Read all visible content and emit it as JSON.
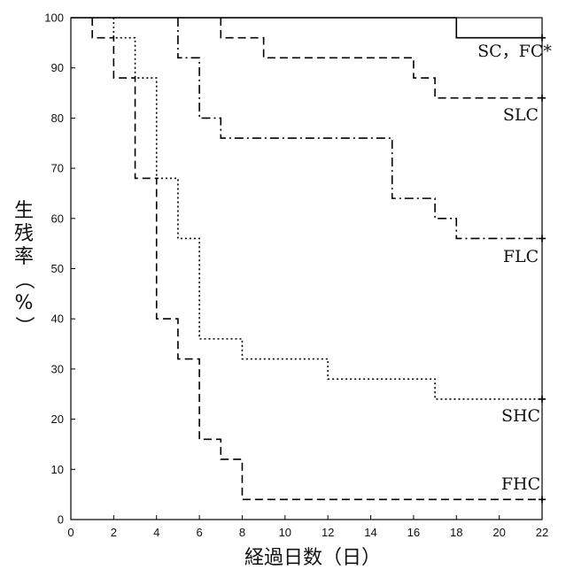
{
  "chart_data": {
    "type": "line",
    "subtype": "step",
    "xlabel": "経過日数（日）",
    "ylabel": "生残率（%）",
    "xlim": [
      0,
      22
    ],
    "ylim": [
      0,
      100
    ],
    "x_ticks": [
      0,
      2,
      4,
      6,
      8,
      10,
      12,
      14,
      16,
      18,
      20,
      22
    ],
    "y_ticks": [
      0,
      10,
      20,
      30,
      40,
      50,
      60,
      70,
      80,
      90,
      100
    ],
    "grid": false,
    "legend": "inline labels at right end of each curve",
    "series": [
      {
        "name": "SC，FC*",
        "style": "solid",
        "points": [
          [
            0,
            100
          ],
          [
            18,
            100
          ],
          [
            18,
            96
          ],
          [
            22,
            96
          ]
        ],
        "end_marker": "+"
      },
      {
        "name": "SLC",
        "style": "dashed",
        "points": [
          [
            7,
            100
          ],
          [
            7,
            96
          ],
          [
            9,
            96
          ],
          [
            9,
            92
          ],
          [
            16,
            92
          ],
          [
            16,
            88
          ],
          [
            17,
            88
          ],
          [
            17,
            84
          ],
          [
            22,
            84
          ]
        ],
        "end_marker": "+"
      },
      {
        "name": "FLC",
        "style": "dashdot",
        "points": [
          [
            5,
            100
          ],
          [
            5,
            92
          ],
          [
            6,
            92
          ],
          [
            6,
            80
          ],
          [
            7,
            80
          ],
          [
            7,
            76
          ],
          [
            15,
            76
          ],
          [
            15,
            64
          ],
          [
            17,
            64
          ],
          [
            17,
            60
          ],
          [
            18,
            60
          ],
          [
            18,
            56
          ],
          [
            22,
            56
          ]
        ],
        "end_marker": "+"
      },
      {
        "name": "SHC",
        "style": "dotted",
        "points": [
          [
            2,
            100
          ],
          [
            2,
            96
          ],
          [
            3,
            96
          ],
          [
            3,
            88
          ],
          [
            4,
            88
          ],
          [
            4,
            68
          ],
          [
            5,
            68
          ],
          [
            5,
            56
          ],
          [
            6,
            56
          ],
          [
            6,
            36
          ],
          [
            8,
            36
          ],
          [
            8,
            32
          ],
          [
            12,
            32
          ],
          [
            12,
            28
          ],
          [
            17,
            28
          ],
          [
            17,
            24
          ],
          [
            22,
            24
          ]
        ],
        "end_marker": "+"
      },
      {
        "name": "FHC",
        "style": "dashed",
        "points": [
          [
            1,
            100
          ],
          [
            1,
            96
          ],
          [
            2,
            96
          ],
          [
            2,
            88
          ],
          [
            3,
            88
          ],
          [
            3,
            68
          ],
          [
            4,
            68
          ],
          [
            4,
            40
          ],
          [
            5,
            40
          ],
          [
            5,
            32
          ],
          [
            6,
            32
          ],
          [
            6,
            16
          ],
          [
            7,
            16
          ],
          [
            7,
            12
          ],
          [
            8,
            12
          ],
          [
            8,
            4
          ],
          [
            22,
            4
          ]
        ],
        "end_marker": "+"
      }
    ]
  }
}
